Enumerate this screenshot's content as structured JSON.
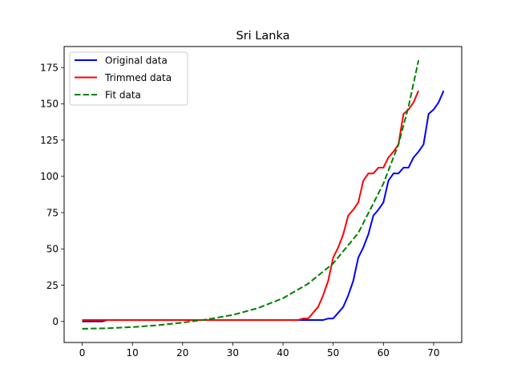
{
  "chart_data": {
    "type": "line",
    "title": "Sri Lanka",
    "xlabel": "",
    "ylabel": "",
    "xlim": [
      -3.6,
      75.6
    ],
    "ylim": [
      -14.5,
      189.5
    ],
    "xticks": [
      0,
      10,
      20,
      30,
      40,
      50,
      60,
      70
    ],
    "yticks": [
      0,
      25,
      50,
      75,
      100,
      125,
      150,
      175
    ],
    "grid": false,
    "legend_position": "upper-left",
    "series": [
      {
        "name": "Original data",
        "color": "#0000ff",
        "style": "solid",
        "x": [
          0,
          4,
          5,
          48,
          49,
          50,
          51,
          52,
          53,
          54,
          55,
          56,
          57,
          58,
          59,
          60,
          61,
          62,
          63,
          64,
          65,
          66,
          67,
          68,
          69,
          70,
          71,
          72
        ],
        "y": [
          0,
          0,
          1,
          1,
          2,
          2,
          6,
          10,
          18,
          28,
          44,
          51,
          60,
          73,
          77,
          82,
          97,
          102,
          102,
          106,
          106,
          113,
          117,
          122,
          143,
          146,
          151,
          159
        ]
      },
      {
        "name": "Trimmed data",
        "color": "#ff0000",
        "style": "solid",
        "x": [
          0,
          43,
          44,
          45,
          46,
          47,
          48,
          49,
          50,
          51,
          52,
          53,
          54,
          55,
          56,
          57,
          58,
          59,
          60,
          61,
          62,
          63,
          64,
          65,
          66,
          67
        ],
        "y": [
          1,
          1,
          2,
          2,
          6,
          10,
          18,
          28,
          44,
          51,
          60,
          73,
          77,
          82,
          97,
          102,
          102,
          106,
          106,
          113,
          117,
          122,
          143,
          146,
          151,
          159
        ]
      },
      {
        "name": "Fit data",
        "color": "#008000",
        "style": "dashed",
        "x": [
          0,
          5,
          10,
          15,
          20,
          25,
          30,
          35,
          40,
          45,
          50,
          55,
          60,
          63,
          65,
          67
        ],
        "y": [
          -5,
          -4.7,
          -3.9,
          -2.6,
          -0.8,
          1.5,
          4.5,
          9.2,
          16,
          26,
          40,
          61,
          95,
          122,
          148,
          180
        ]
      }
    ]
  }
}
